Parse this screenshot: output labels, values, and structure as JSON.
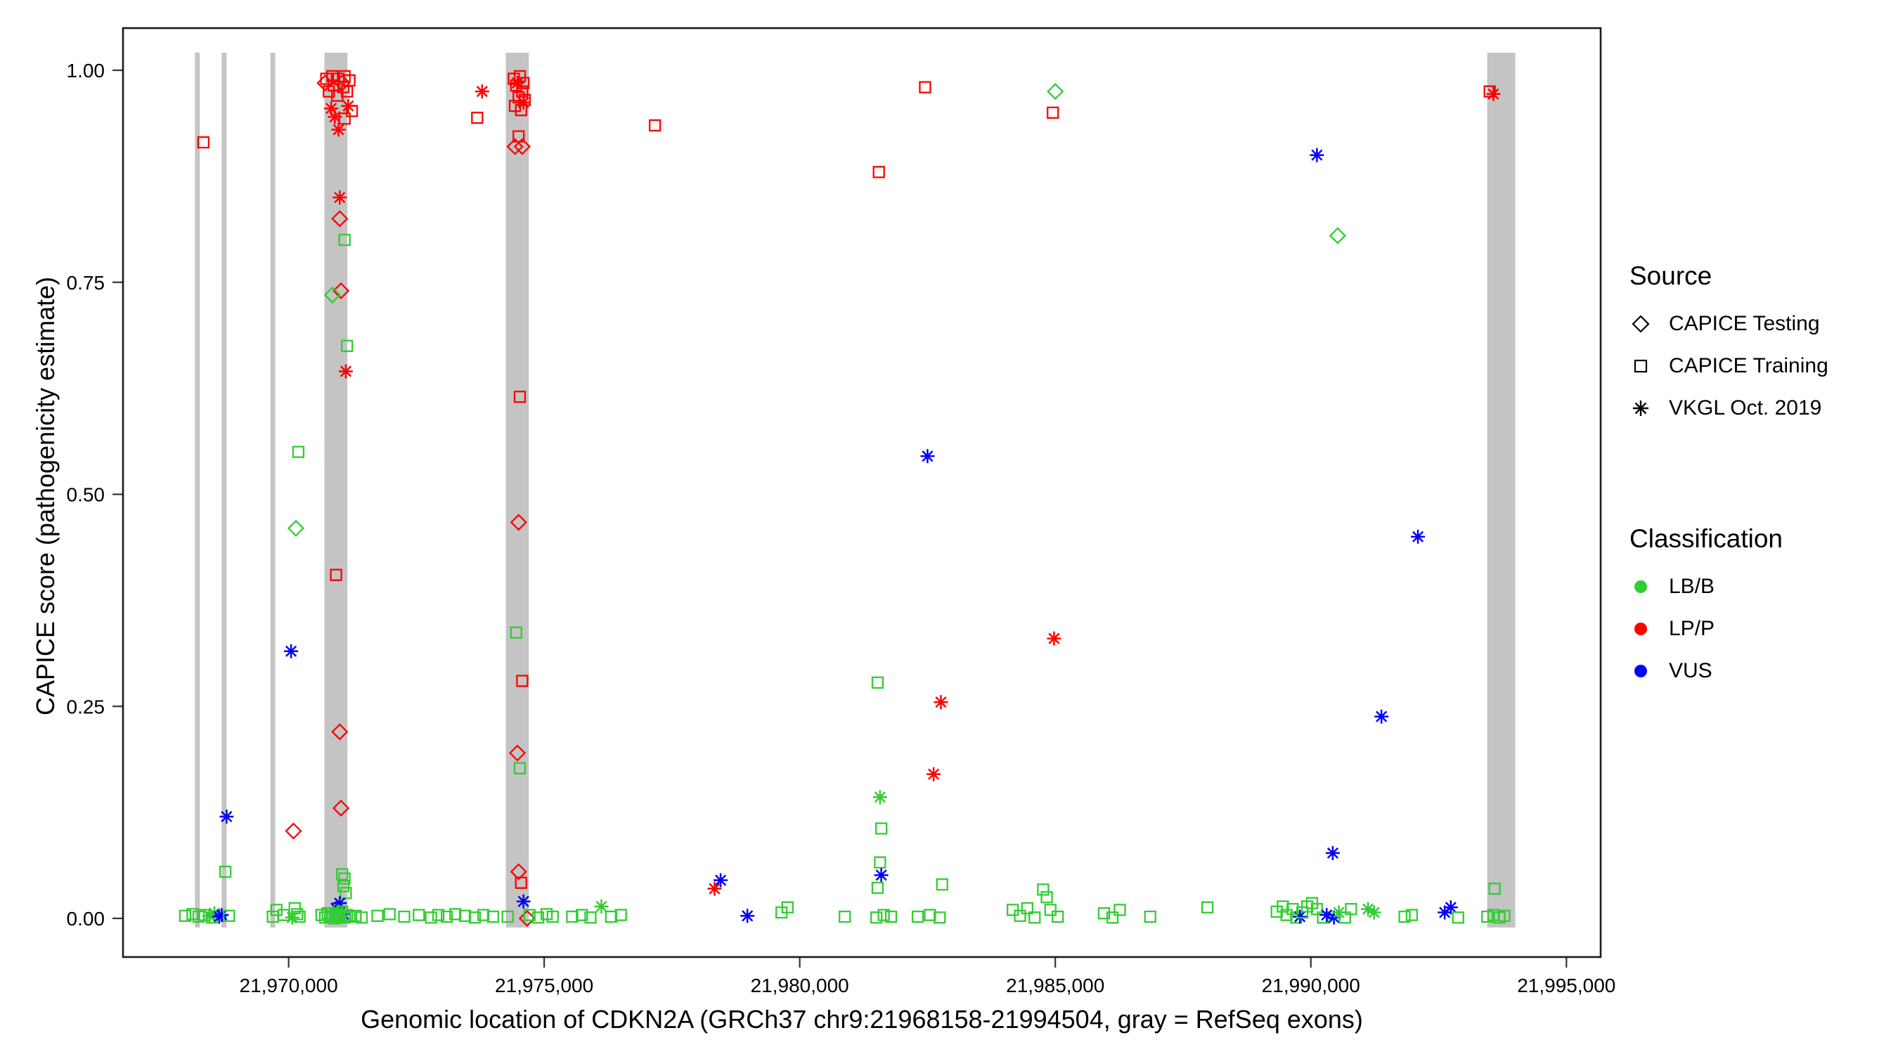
{
  "figure": {
    "y_axis": {
      "label": "CAPICE score (pathogenicity estimate)",
      "ticks": [
        {
          "value": 0.0,
          "label": "0.00"
        },
        {
          "value": 0.25,
          "label": "0.25"
        },
        {
          "value": 0.5,
          "label": "0.50"
        },
        {
          "value": 0.75,
          "label": "0.75"
        },
        {
          "value": 1.0,
          "label": "1.00"
        }
      ]
    },
    "x_axis": {
      "label": "Genomic location of CDKN2A (GRCh37 chr9:21968158-21994504, gray = RefSeq exons)",
      "ticks": [
        {
          "value": 21970000,
          "label": "21,970,000"
        },
        {
          "value": 21975000,
          "label": "21,975,000"
        },
        {
          "value": 21980000,
          "label": "21,980,000"
        },
        {
          "value": 21985000,
          "label": "21,985,000"
        },
        {
          "value": 21990000,
          "label": "21,990,000"
        },
        {
          "value": 21995000,
          "label": "21,995,000"
        }
      ]
    }
  },
  "legend": {
    "source": {
      "title": "Source",
      "items": [
        {
          "label": "CAPICE Testing",
          "shape": "diamond"
        },
        {
          "label": "CAPICE Training",
          "shape": "square"
        },
        {
          "label": "VKGL Oct. 2019",
          "shape": "asterisk"
        }
      ]
    },
    "classification": {
      "title": "Classification",
      "items": [
        {
          "label": "LB/B",
          "color": "#32cd32"
        },
        {
          "label": "LP/P",
          "color": "#ff0000"
        },
        {
          "label": "VUS",
          "color": "#0000ff"
        }
      ]
    }
  },
  "chart_data": {
    "type": "scatter",
    "x_range": [
      21966760,
      21995670
    ],
    "y_range": [
      0,
      1
    ],
    "exon_color": "#c4c4c4",
    "exons": [
      [
        21968167,
        21968262
      ],
      [
        21968690,
        21968786
      ],
      [
        21969643,
        21969738
      ],
      [
        21970700,
        21971150
      ],
      [
        21974250,
        21974700
      ],
      [
        21993450,
        21994000
      ]
    ],
    "point_format": [
      "genomic_position",
      "capice_score",
      "source_code",
      "classification_code"
    ],
    "source_labels": {
      "D": "CAPICE Testing",
      "S": "CAPICE Training",
      "V": "VKGL Oct. 2019"
    },
    "source_shapes": {
      "D": "diamond",
      "S": "square",
      "V": "asterisk"
    },
    "class_colors": {
      "B": "#32cd32",
      "P": "#ff0000",
      "U": "#0000ff"
    },
    "points": [
      [
        21967976,
        0.003,
        "S",
        "B"
      ],
      [
        21968119,
        0.005,
        "S",
        "B"
      ],
      [
        21968238,
        0.002,
        "S",
        "B"
      ],
      [
        21968333,
        0.915,
        "S",
        "P"
      ],
      [
        21968357,
        0.004,
        "S",
        "B"
      ],
      [
        21968452,
        0.003,
        "V",
        "B"
      ],
      [
        21968500,
        0.001,
        "S",
        "B"
      ],
      [
        21968548,
        0.006,
        "V",
        "B"
      ],
      [
        21968643,
        0.002,
        "V",
        "U"
      ],
      [
        21968690,
        0.004,
        "V",
        "U"
      ],
      [
        21968762,
        0.055,
        "S",
        "B"
      ],
      [
        21968786,
        0.12,
        "V",
        "U"
      ],
      [
        21968833,
        0.003,
        "S",
        "B"
      ],
      [
        21969690,
        0.002,
        "S",
        "B"
      ],
      [
        21969762,
        0.01,
        "S",
        "B"
      ],
      [
        21969905,
        0.004,
        "S",
        "B"
      ],
      [
        21970048,
        0.315,
        "V",
        "U"
      ],
      [
        21970095,
        0.103,
        "D",
        "P"
      ],
      [
        21970143,
        0.46,
        "D",
        "B"
      ],
      [
        21970190,
        0.55,
        "S",
        "B"
      ],
      [
        21970071,
        0.001,
        "V",
        "B"
      ],
      [
        21970119,
        0.012,
        "S",
        "B"
      ],
      [
        21970167,
        0.005,
        "S",
        "B"
      ],
      [
        21970214,
        0.002,
        "S",
        "B"
      ],
      [
        21970714,
        0.985,
        "D",
        "P"
      ],
      [
        21970738,
        0.99,
        "S",
        "P"
      ],
      [
        21970786,
        0.975,
        "S",
        "P"
      ],
      [
        21970833,
        0.955,
        "V",
        "P"
      ],
      [
        21970857,
        0.993,
        "S",
        "P"
      ],
      [
        21970881,
        0.982,
        "S",
        "P"
      ],
      [
        21970905,
        0.945,
        "V",
        "P"
      ],
      [
        21970929,
        0.405,
        "S",
        "P"
      ],
      [
        21970952,
        0.97,
        "S",
        "P"
      ],
      [
        21970976,
        0.99,
        "S",
        "P"
      ],
      [
        21970976,
        0.93,
        "V",
        "P"
      ],
      [
        21971000,
        0.85,
        "V",
        "P"
      ],
      [
        21971000,
        0.825,
        "D",
        "P"
      ],
      [
        21971000,
        0.22,
        "D",
        "P"
      ],
      [
        21971024,
        0.74,
        "D",
        "P"
      ],
      [
        21970857,
        0.735,
        "D",
        "B"
      ],
      [
        21971024,
        0.13,
        "D",
        "P"
      ],
      [
        21971048,
        0.985,
        "D",
        "P"
      ],
      [
        21971071,
        0.98,
        "S",
        "P"
      ],
      [
        21971095,
        0.993,
        "S",
        "P"
      ],
      [
        21971095,
        0.943,
        "S",
        "P"
      ],
      [
        21971095,
        0.8,
        "S",
        "B"
      ],
      [
        21971119,
        0.645,
        "V",
        "P"
      ],
      [
        21971143,
        0.975,
        "S",
        "P"
      ],
      [
        21971143,
        0.675,
        "S",
        "B"
      ],
      [
        21971167,
        0.958,
        "V",
        "P"
      ],
      [
        21971190,
        0.988,
        "S",
        "P"
      ],
      [
        21971238,
        0.952,
        "S",
        "P"
      ],
      [
        21971048,
        0.052,
        "S",
        "B"
      ],
      [
        21971095,
        0.047,
        "S",
        "B"
      ],
      [
        21971071,
        0.038,
        "S",
        "B"
      ],
      [
        21971119,
        0.03,
        "S",
        "B"
      ],
      [
        21970929,
        0.012,
        "V",
        "U"
      ],
      [
        21971000,
        0.018,
        "V",
        "U"
      ],
      [
        21971071,
        0.005,
        "V",
        "U"
      ],
      [
        21970976,
        0.008,
        "V",
        "B"
      ],
      [
        21970643,
        0.004,
        "S",
        "B"
      ],
      [
        21970714,
        0.001,
        "S",
        "B"
      ],
      [
        21970762,
        0.006,
        "S",
        "B"
      ],
      [
        21970810,
        0.002,
        "S",
        "B"
      ],
      [
        21970857,
        0.003,
        "S",
        "B"
      ],
      [
        21970905,
        0.0,
        "S",
        "B"
      ],
      [
        21970952,
        0.005,
        "S",
        "B"
      ],
      [
        21971000,
        0.002,
        "S",
        "B"
      ],
      [
        21971048,
        0.008,
        "S",
        "B"
      ],
      [
        21971095,
        0.001,
        "S",
        "B"
      ],
      [
        21971143,
        0.004,
        "S",
        "B"
      ],
      [
        21971190,
        0.002,
        "S",
        "B"
      ],
      [
        21971310,
        0.003,
        "S",
        "B"
      ],
      [
        21971429,
        0.001,
        "S",
        "B"
      ],
      [
        21971738,
        0.003,
        "S",
        "B"
      ],
      [
        21971976,
        0.005,
        "S",
        "B"
      ],
      [
        21972262,
        0.002,
        "S",
        "B"
      ],
      [
        21972548,
        0.004,
        "S",
        "B"
      ],
      [
        21972786,
        0.001,
        "S",
        "B"
      ],
      [
        21972929,
        0.004,
        "S",
        "B"
      ],
      [
        21973095,
        0.002,
        "S",
        "B"
      ],
      [
        21973262,
        0.005,
        "S",
        "B"
      ],
      [
        21973452,
        0.003,
        "S",
        "B"
      ],
      [
        21973643,
        0.001,
        "S",
        "B"
      ],
      [
        21973810,
        0.004,
        "S",
        "B"
      ],
      [
        21974000,
        0.002,
        "S",
        "B"
      ],
      [
        21973690,
        0.944,
        "S",
        "P"
      ],
      [
        21973786,
        0.975,
        "V",
        "P"
      ],
      [
        21974405,
        0.99,
        "S",
        "P"
      ],
      [
        21974429,
        0.958,
        "S",
        "P"
      ],
      [
        21974429,
        0.91,
        "D",
        "P"
      ],
      [
        21974452,
        0.982,
        "S",
        "P"
      ],
      [
        21974452,
        0.337,
        "S",
        "B"
      ],
      [
        21974476,
        0.985,
        "V",
        "P"
      ],
      [
        21974476,
        0.195,
        "D",
        "P"
      ],
      [
        21974500,
        0.968,
        "S",
        "P"
      ],
      [
        21974500,
        0.922,
        "S",
        "P"
      ],
      [
        21974500,
        0.467,
        "D",
        "P"
      ],
      [
        21974500,
        0.055,
        "D",
        "P"
      ],
      [
        21974524,
        0.993,
        "S",
        "P"
      ],
      [
        21974524,
        0.615,
        "S",
        "P"
      ],
      [
        21974524,
        0.177,
        "S",
        "B"
      ],
      [
        21974548,
        0.953,
        "S",
        "P"
      ],
      [
        21974548,
        0.042,
        "S",
        "P"
      ],
      [
        21974571,
        0.975,
        "S",
        "P"
      ],
      [
        21974571,
        0.91,
        "D",
        "P"
      ],
      [
        21974571,
        0.28,
        "S",
        "P"
      ],
      [
        21974595,
        0.985,
        "S",
        "P"
      ],
      [
        21974595,
        0.962,
        "V",
        "P"
      ],
      [
        21974595,
        0.02,
        "V",
        "U"
      ],
      [
        21974619,
        0.965,
        "S",
        "P"
      ],
      [
        21974667,
        0.0,
        "D",
        "P"
      ],
      [
        21974286,
        0.002,
        "S",
        "B"
      ],
      [
        21974714,
        0.004,
        "S",
        "B"
      ],
      [
        21974881,
        0.001,
        "S",
        "B"
      ],
      [
        21975048,
        0.005,
        "S",
        "B"
      ],
      [
        21975167,
        0.002,
        "S",
        "B"
      ],
      [
        21975548,
        0.002,
        "S",
        "B"
      ],
      [
        21975738,
        0.004,
        "S",
        "B"
      ],
      [
        21975905,
        0.001,
        "S",
        "B"
      ],
      [
        21976119,
        0.014,
        "V",
        "B"
      ],
      [
        21976310,
        0.002,
        "S",
        "B"
      ],
      [
        21976500,
        0.004,
        "S",
        "B"
      ],
      [
        21977167,
        0.935,
        "S",
        "P"
      ],
      [
        21978333,
        0.035,
        "V",
        "P"
      ],
      [
        21978452,
        0.045,
        "V",
        "U"
      ],
      [
        21978976,
        0.003,
        "V",
        "U"
      ],
      [
        21979643,
        0.007,
        "S",
        "B"
      ],
      [
        21979762,
        0.013,
        "S",
        "B"
      ],
      [
        21980881,
        0.002,
        "S",
        "B"
      ],
      [
        21981548,
        0.88,
        "S",
        "P"
      ],
      [
        21981524,
        0.278,
        "S",
        "B"
      ],
      [
        21981571,
        0.143,
        "V",
        "B"
      ],
      [
        21981595,
        0.106,
        "S",
        "B"
      ],
      [
        21981571,
        0.066,
        "S",
        "B"
      ],
      [
        21981595,
        0.051,
        "V",
        "U"
      ],
      [
        21981524,
        0.036,
        "S",
        "B"
      ],
      [
        21981643,
        0.004,
        "S",
        "B"
      ],
      [
        21981500,
        0.001,
        "S",
        "B"
      ],
      [
        21981786,
        0.002,
        "S",
        "B"
      ],
      [
        21982452,
        0.98,
        "S",
        "P"
      ],
      [
        21982500,
        0.545,
        "V",
        "U"
      ],
      [
        21982762,
        0.255,
        "V",
        "P"
      ],
      [
        21982619,
        0.17,
        "V",
        "P"
      ],
      [
        21982786,
        0.04,
        "S",
        "B"
      ],
      [
        21982310,
        0.002,
        "S",
        "B"
      ],
      [
        21982548,
        0.004,
        "S",
        "B"
      ],
      [
        21982738,
        0.001,
        "S",
        "B"
      ],
      [
        21985000,
        0.975,
        "D",
        "B"
      ],
      [
        21984952,
        0.95,
        "S",
        "P"
      ],
      [
        21984976,
        0.33,
        "V",
        "P"
      ],
      [
        21984167,
        0.01,
        "S",
        "B"
      ],
      [
        21984310,
        0.003,
        "S",
        "B"
      ],
      [
        21984452,
        0.012,
        "S",
        "B"
      ],
      [
        21984595,
        0.001,
        "S",
        "B"
      ],
      [
        21984762,
        0.034,
        "S",
        "B"
      ],
      [
        21984833,
        0.025,
        "S",
        "B"
      ],
      [
        21984905,
        0.01,
        "S",
        "B"
      ],
      [
        21985048,
        0.002,
        "S",
        "B"
      ],
      [
        21985952,
        0.006,
        "S",
        "B"
      ],
      [
        21986119,
        0.001,
        "S",
        "B"
      ],
      [
        21986262,
        0.01,
        "S",
        "B"
      ],
      [
        21986857,
        0.002,
        "S",
        "B"
      ],
      [
        21987976,
        0.013,
        "S",
        "B"
      ],
      [
        21990119,
        0.9,
        "V",
        "U"
      ],
      [
        21990524,
        0.805,
        "D",
        "B"
      ],
      [
        21990429,
        0.077,
        "V",
        "U"
      ],
      [
        21989333,
        0.008,
        "S",
        "B"
      ],
      [
        21989452,
        0.014,
        "S",
        "B"
      ],
      [
        21989524,
        0.004,
        "S",
        "B"
      ],
      [
        21989643,
        0.011,
        "S",
        "B"
      ],
      [
        21989714,
        0.001,
        "S",
        "B"
      ],
      [
        21989786,
        0.002,
        "V",
        "U"
      ],
      [
        21989833,
        0.007,
        "S",
        "B"
      ],
      [
        21989929,
        0.014,
        "S",
        "B"
      ],
      [
        21990024,
        0.018,
        "S",
        "B"
      ],
      [
        21990119,
        0.011,
        "S",
        "B"
      ],
      [
        21990238,
        0.001,
        "S",
        "B"
      ],
      [
        21990310,
        0.004,
        "V",
        "U"
      ],
      [
        21990452,
        0.001,
        "V",
        "U"
      ],
      [
        21990548,
        0.007,
        "V",
        "B"
      ],
      [
        21990667,
        0.001,
        "S",
        "B"
      ],
      [
        21990786,
        0.011,
        "S",
        "B"
      ],
      [
        21991381,
        0.238,
        "V",
        "U"
      ],
      [
        21991119,
        0.011,
        "V",
        "B"
      ],
      [
        21991238,
        0.007,
        "V",
        "B"
      ],
      [
        21992095,
        0.45,
        "V",
        "U"
      ],
      [
        21991833,
        0.002,
        "S",
        "B"
      ],
      [
        21991976,
        0.004,
        "S",
        "B"
      ],
      [
        21992619,
        0.007,
        "V",
        "U"
      ],
      [
        21992738,
        0.013,
        "V",
        "U"
      ],
      [
        21992881,
        0.001,
        "S",
        "B"
      ],
      [
        21993500,
        0.975,
        "S",
        "P"
      ],
      [
        21993571,
        0.972,
        "V",
        "P"
      ],
      [
        21993595,
        0.035,
        "S",
        "B"
      ],
      [
        21993452,
        0.002,
        "S",
        "B"
      ],
      [
        21993571,
        0.004,
        "S",
        "B"
      ],
      [
        21993690,
        0.001,
        "S",
        "B"
      ],
      [
        21993786,
        0.003,
        "S",
        "B"
      ]
    ]
  }
}
